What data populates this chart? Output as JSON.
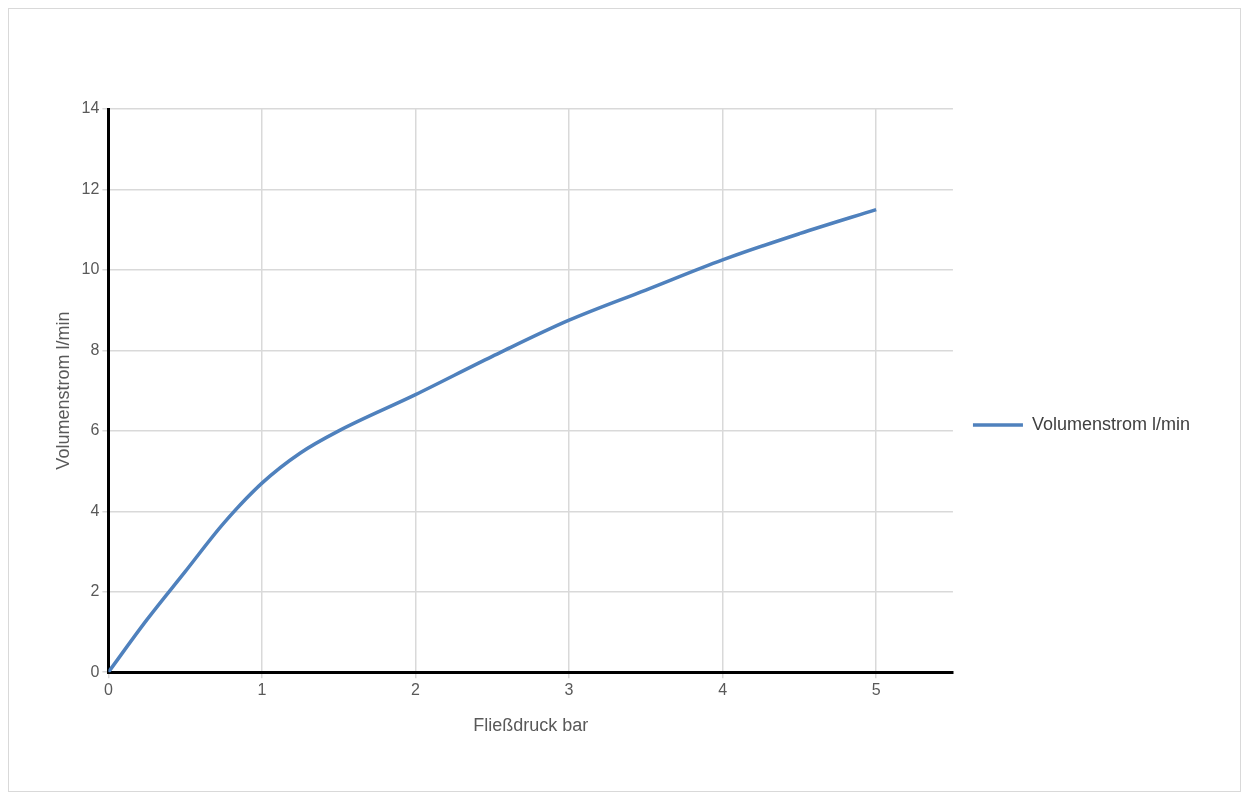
{
  "chart_data": {
    "type": "line",
    "xlabel": "Fließdruck bar",
    "ylabel": "Volumenstrom l/min",
    "x": [
      0,
      0.25,
      0.5,
      0.75,
      1,
      1.25,
      1.5,
      2,
      2.5,
      3,
      3.5,
      4,
      4.5,
      5
    ],
    "series": [
      {
        "name": "Volumenstrom l/min",
        "color": "#4f81bd",
        "values": [
          0,
          1.3,
          2.5,
          3.7,
          4.7,
          5.45,
          6.0,
          6.9,
          7.85,
          8.75,
          9.5,
          10.25,
          10.9,
          11.5
        ]
      }
    ],
    "xlim": [
      0,
      5.5
    ],
    "xticks": [
      0,
      1,
      2,
      3,
      4,
      5
    ],
    "ylim": [
      0,
      14
    ],
    "yticks": [
      0,
      2,
      4,
      6,
      8,
      10,
      12,
      14
    ],
    "grid": true,
    "legend": "right",
    "marker": "none",
    "line_style": "solid"
  }
}
